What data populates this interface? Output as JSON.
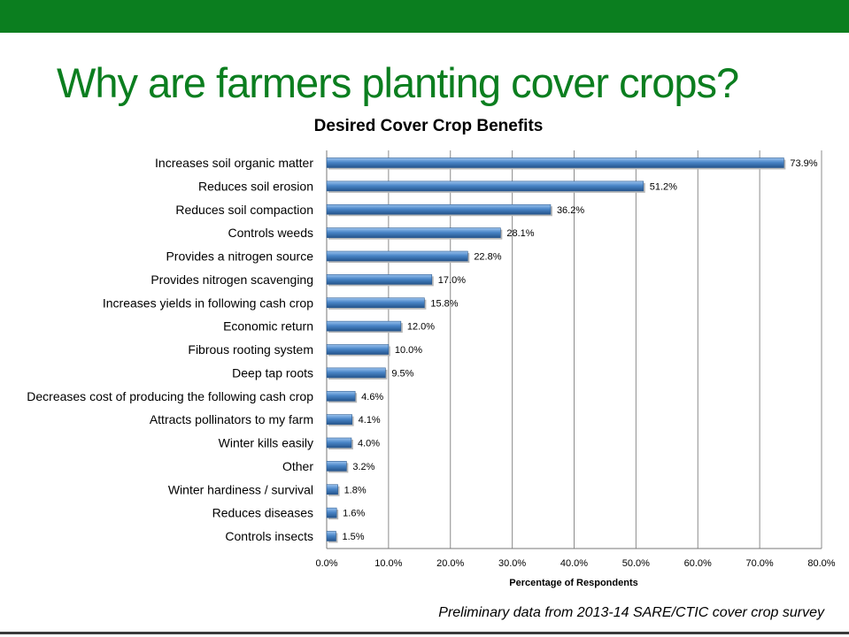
{
  "slide": {
    "title": "Why are farmers planting cover crops?",
    "footnote": "Preliminary data from 2013-14 SARE/CTIC cover crop survey"
  },
  "colors": {
    "brand_green": "#0b7e1f",
    "bar_fill": "#4a86c8",
    "bar_edge": "#2a5a90",
    "grid": "#8c8c8c"
  },
  "chart_data": {
    "type": "bar",
    "orientation": "horizontal",
    "title": "Desired Cover Crop Benefits",
    "xlabel": "Percentage of Respondents",
    "ylabel": "",
    "xlim": [
      0,
      80
    ],
    "xticks": [
      0,
      10,
      20,
      30,
      40,
      50,
      60,
      70,
      80
    ],
    "xtick_labels": [
      "0.0%",
      "10.0%",
      "20.0%",
      "30.0%",
      "40.0%",
      "50.0%",
      "60.0%",
      "70.0%",
      "80.0%"
    ],
    "grid": true,
    "categories": [
      "Increases soil organic matter",
      "Reduces soil erosion",
      "Reduces soil compaction",
      "Controls weeds",
      "Provides a nitrogen source",
      "Provides nitrogen scavenging",
      "Increases yields in following cash crop",
      "Economic return",
      "Fibrous rooting system",
      "Deep tap roots",
      "Decreases cost of producing the following cash crop",
      "Attracts pollinators to my farm",
      "Winter kills easily",
      "Other",
      "Winter hardiness / survival",
      "Reduces diseases",
      "Controls insects"
    ],
    "values": [
      73.9,
      51.2,
      36.2,
      28.1,
      22.8,
      17.0,
      15.8,
      12.0,
      10.0,
      9.5,
      4.6,
      4.1,
      4.0,
      3.2,
      1.8,
      1.6,
      1.5
    ],
    "data_labels": [
      "73.9%",
      "51.2%",
      "36.2%",
      "28.1%",
      "22.8%",
      "17.0%",
      "15.8%",
      "12.0%",
      "10.0%",
      "9.5%",
      "4.6%",
      "4.1%",
      "4.0%",
      "3.2%",
      "1.8%",
      "1.6%",
      "1.5%"
    ]
  }
}
